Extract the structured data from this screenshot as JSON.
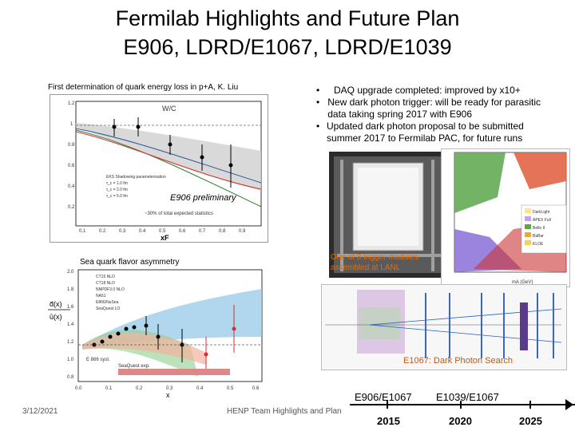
{
  "slide": {
    "title_line1": "Fermilab Highlights and Future Plan",
    "title_line2": "E906, LDRD/E1067, LDRD/E1039",
    "footer_date": "3/12/2021",
    "footer_center": "HENP Team Highlights and Plan"
  },
  "left_top": {
    "caption": "First determination of quark energy loss in p+A, K. Liu",
    "plot_title": "W/C",
    "xlabel": "xF",
    "prelim_label": "E906 preliminary",
    "stat_note": "~30% of total expected statistics",
    "legend": [
      "EKS Shadowing parameterization",
      "τ_c = 1.0 fm",
      "τ_c = 2.0 fm",
      "τ_c = 5.0 fm"
    ],
    "x_ticks": [
      "0.1",
      "0.2",
      "0.3",
      "0.4",
      "0.5",
      "0.6",
      "0.7",
      "0.8",
      "0.9"
    ],
    "y_ticks": [
      "1.2",
      "1",
      "0.8",
      "0.6",
      "0.4",
      "0.2"
    ]
  },
  "left_bottom": {
    "caption": "Sea quark flavor asymmetry",
    "legend": [
      "CT15 NLO",
      "CT18 NLO",
      "NNPDF3.0 NLO",
      "NA51",
      "E866/NuSea",
      "SeaQuest LO"
    ],
    "note1": "E 866 syst.",
    "note2": "SeaQuest exp.",
    "xlabel": "x",
    "ylabel_num": "d̄(x)",
    "ylabel_den": "ū(x)",
    "x_ticks": [
      "0.0",
      "0.1",
      "0.2",
      "0.3",
      "0.4",
      "0.5",
      "0.6"
    ],
    "y_ticks": [
      "2.0",
      "1.8",
      "1.6",
      "1.4",
      "1.2",
      "1.0",
      "0.8"
    ]
  },
  "bullets": [
    "DAQ upgrade completed: improved by x10+",
    "New dark photon trigger: will be ready for parasitic data taking spring 2017 with E906",
    "Updated dark photon proposal to be submitted summer 2017 to Fermilab PAC, for future runs"
  ],
  "photo": {
    "caption": "One of 8 trigger modules assembled at LANL"
  },
  "darkphoton_plot": {
    "xlabel": "mA (GeV)",
    "legend": [
      "DarkLight",
      "APEX Full",
      "Belle II",
      "BaBar",
      "KLOE"
    ]
  },
  "e1067": {
    "caption": "E1067: Dark Photon Search"
  },
  "timeline": {
    "label1": "E906/E1067",
    "label2": "E1039/E1067",
    "years": [
      "2015",
      "2020",
      "2025"
    ]
  },
  "colors": {
    "accent_orange": "#C65911",
    "caption_orange": "#E36C09"
  }
}
